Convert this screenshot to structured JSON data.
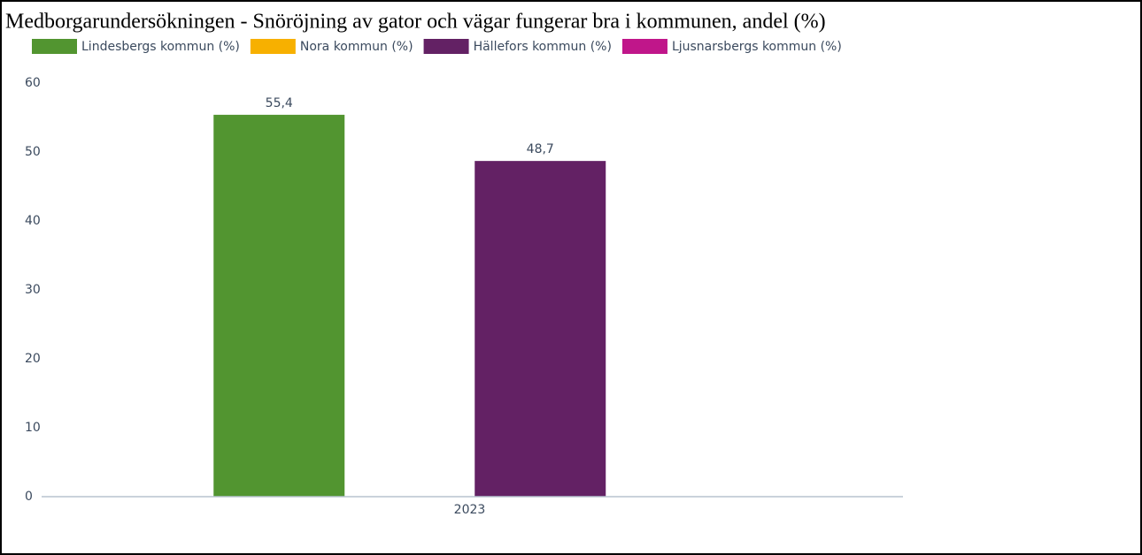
{
  "chart_data": {
    "type": "bar",
    "title": "Medborgarundersökningen - Snöröjning av gator och vägar fungerar bra i kommunen, andel (%)",
    "categories": [
      "2023"
    ],
    "series": [
      {
        "name": "Lindesbergs kommun (%)",
        "color": "#529530",
        "values": [
          55.4
        ],
        "value_labels": [
          "55,4"
        ]
      },
      {
        "name": "Nora kommun (%)",
        "color": "#f7b000",
        "values": [
          null
        ],
        "value_labels": [
          null
        ]
      },
      {
        "name": "Hällefors kommun (%)",
        "color": "#632164",
        "values": [
          48.7
        ],
        "value_labels": [
          "48,7"
        ]
      },
      {
        "name": "Ljusnarsbergs kommun (%)",
        "color": "#c0168a",
        "values": [
          null
        ],
        "value_labels": [
          null
        ]
      }
    ],
    "ylim": [
      0,
      60
    ],
    "yticks": [
      0,
      10,
      20,
      30,
      40,
      50,
      60
    ],
    "grid": false,
    "legend": "top"
  }
}
